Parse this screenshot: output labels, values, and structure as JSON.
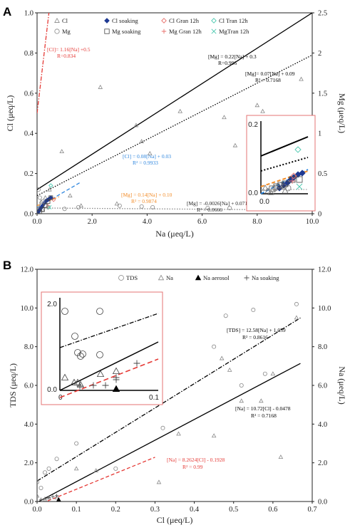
{
  "chart_data": [
    {
      "type": "scatter",
      "panel": "A",
      "xlabel": "Na (μeq/L)",
      "ylabel": "Cl (μeq/L)",
      "y2label": "Mg (μeq/L)",
      "xlim": [
        0,
        10
      ],
      "ylim": [
        0,
        1.0
      ],
      "y2lim": [
        0,
        2.5
      ],
      "xticks": [
        "0.0",
        "2.0",
        "4.0",
        "6.0",
        "8.0",
        "10.0"
      ],
      "yticks": [
        "0.0",
        "0.2",
        "0.4",
        "0.6",
        "0.8",
        "1.0"
      ],
      "y2ticks": [
        "0",
        "0.5",
        "1",
        "1.5",
        "2",
        "2.5"
      ],
      "legend": [
        "Cl",
        "Cl soaking",
        "Cl Gran 12h",
        "Cl Tran 12h",
        "Mg",
        "Mg soaking",
        "Mg Gran 12h",
        "MgTran 12h"
      ],
      "series": [
        {
          "name": "Cl",
          "marker": "triangle-open",
          "color": "#888888",
          "x": [
            0.05,
            0.08,
            0.1,
            0.12,
            0.15,
            0.2,
            0.3,
            0.45,
            0.9,
            1.2,
            1.6,
            2.3,
            2.9,
            3.6,
            3.8,
            4.1,
            5.2,
            6.8,
            7.2,
            8.0,
            8.2,
            9.6
          ],
          "y": [
            0.01,
            0.02,
            0.03,
            0.04,
            0.06,
            0.02,
            0.08,
            0.12,
            0.31,
            0.09,
            0.04,
            0.63,
            0.05,
            0.44,
            0.36,
            0.3,
            0.51,
            0.48,
            0.34,
            0.54,
            0.51,
            0.67
          ]
        },
        {
          "name": "Cl soaking",
          "marker": "diamond-filled",
          "color": "#1f3a93",
          "x": [
            0.05,
            0.1,
            0.15,
            0.2,
            0.25,
            0.3,
            0.35,
            0.4,
            0.45,
            0.5
          ],
          "y": [
            0.01,
            0.02,
            0.03,
            0.04,
            0.05,
            0.06,
            0.065,
            0.07,
            0.075,
            0.08
          ]
        },
        {
          "name": "Cl Gran 12h",
          "marker": "diamond-open",
          "color": "#e8716c",
          "x": [
            0.6
          ],
          "y": [
            0.07
          ]
        },
        {
          "name": "Cl Tran 12h",
          "marker": "diamond-open",
          "color": "#4ec9b0",
          "x": [
            0.5
          ],
          "y": [
            0.14
          ]
        },
        {
          "name": "Mg",
          "marker": "circle-open",
          "color": "#888888",
          "x": [
            0.05,
            0.1,
            0.2,
            0.3,
            0.4,
            1.0,
            1.5,
            3.0,
            3.8,
            4.2,
            6.2,
            7.0,
            8.2,
            9.7
          ],
          "y2": [
            0.3,
            0.2,
            0.15,
            0.1,
            0.08,
            0.06,
            0.08,
            0.1,
            0.09,
            0.08,
            0.07,
            0.07,
            0.08,
            0.06
          ]
        },
        {
          "name": "Mg soaking",
          "marker": "square-open",
          "color": "#444444",
          "x": [
            0.1,
            0.2,
            0.3,
            0.4,
            0.5
          ],
          "y2": [
            0.02,
            0.05,
            0.1,
            0.15,
            0.2
          ]
        },
        {
          "name": "Mg Gran 12h",
          "marker": "plus",
          "color": "#e8716c",
          "x": [
            0.4
          ],
          "y2": [
            0.1
          ]
        },
        {
          "name": "MgTran 12h",
          "marker": "x",
          "color": "#4ec9b0",
          "x": [
            0.45
          ],
          "y2": [
            0.08
          ]
        }
      ],
      "fits": [
        {
          "label": "[Cl]= 1.16[Na] +0.5",
          "r": "R=0.834",
          "color": "#e53935",
          "dash": "dashdot",
          "slope": 1.16,
          "intercept": 0.5,
          "axis": "y",
          "xrange": [
            0,
            0.5
          ]
        },
        {
          "label": "[Mg] = 0.22[Na] + 0.3",
          "r": "R=0.996",
          "color": "#000000",
          "dash": "solid",
          "slope": 0.22,
          "intercept": 0.3,
          "axis": "y2",
          "xrange": [
            0,
            10
          ]
        },
        {
          "label": "[Mg]= 0.07[Na] + 0.09",
          "r": "R² = 0.7168",
          "color": "#000000",
          "dash": "dotted",
          "slope": 0.07,
          "intercept": 0.09,
          "axis": "y",
          "xrange": [
            0,
            10
          ]
        },
        {
          "label": "[Cl] = 0.08[Na] + 0.03",
          "r": "R² = 0.9933",
          "color": "#2e86de",
          "dash": "dashed",
          "slope": 0.08,
          "intercept": 0.03,
          "axis": "y",
          "xrange": [
            0,
            1.6
          ]
        },
        {
          "label": "[Mg] = 0.14[Na] + 0.10",
          "r": "R² = 0.9874",
          "color": "#f28c28",
          "dash": "dashed",
          "slope": 0.14,
          "intercept": 0.1,
          "axis": "y2",
          "xrange": [
            0,
            0.8
          ]
        },
        {
          "label": "[Mg] = -0.0026[Na] + 0.0715",
          "r": "R² = 0.0666",
          "color": "#888888",
          "dash": "dotted",
          "slope": -0.0026,
          "intercept": 0.0715,
          "axis": "y2",
          "xrange": [
            0,
            10
          ]
        }
      ],
      "inset": {
        "yticks": [
          "0.0",
          "0.2"
        ]
      }
    },
    {
      "type": "scatter",
      "panel": "B",
      "xlabel": "Cl (μeq/L)",
      "ylabel": "TDS (μeq/L)",
      "y2label": "Na (μeq/L)",
      "xlim": [
        0,
        0.7
      ],
      "ylim": [
        0,
        12
      ],
      "xticks": [
        "0.0",
        "0.1",
        "0.2",
        "0.3",
        "0.4",
        "0.5",
        "0.6",
        "0.7"
      ],
      "yticks": [
        "0.0",
        "2.0",
        "4.0",
        "6.0",
        "8.0",
        "10.0",
        "12.0"
      ],
      "y2ticks": [
        "0.0",
        "2.0",
        "4.0",
        "6.0",
        "8.0",
        "10.0",
        "12.0"
      ],
      "legend": [
        "TDS",
        "Na",
        "Na aerosol",
        "Na soaking"
      ],
      "series": [
        {
          "name": "TDS",
          "marker": "circle-open",
          "color": "#888888",
          "x": [
            0.0,
            0.01,
            0.02,
            0.03,
            0.05,
            0.1,
            0.2,
            0.32,
            0.45,
            0.48,
            0.52,
            0.55,
            0.58,
            0.66
          ],
          "y": [
            1.0,
            0.7,
            1.5,
            1.7,
            2.2,
            3.0,
            1.7,
            3.8,
            8.0,
            9.6,
            6.0,
            9.9,
            6.6,
            10.2
          ]
        },
        {
          "name": "Na",
          "marker": "triangle-open",
          "color": "#888888",
          "x": [
            0.0,
            0.02,
            0.03,
            0.05,
            0.1,
            0.15,
            0.31,
            0.36,
            0.45,
            0.47,
            0.49,
            0.52,
            0.57,
            0.6,
            0.62,
            0.66
          ],
          "y": [
            0.3,
            0.1,
            0.2,
            0.2,
            1.7,
            1.6,
            1.0,
            3.5,
            3.4,
            7.4,
            6.8,
            5.2,
            5.2,
            6.6,
            2.3,
            9.5
          ]
        },
        {
          "name": "Na aerosol",
          "marker": "triangle-filled",
          "color": "#000000",
          "x": [
            0.055
          ],
          "y": [
            0.1
          ]
        },
        {
          "name": "Na soaking",
          "marker": "plus",
          "color": "#555555",
          "x": [
            0.01,
            0.02,
            0.03,
            0.04,
            0.05
          ],
          "y": [
            0.1,
            0.15,
            0.2,
            0.25,
            0.3
          ]
        }
      ],
      "fits": [
        {
          "label": "[TDS] = 12.58[Na] + 1.059",
          "r": "R² = 0.8616",
          "color": "#000000",
          "dash": "dashdot",
          "slope": 12.58,
          "intercept": 1.059,
          "xrange": [
            0,
            0.67
          ]
        },
        {
          "label": "[Na] = 10.72[Cl] - 0.0478",
          "r": "R² = 0.7168",
          "color": "#000000",
          "dash": "solid",
          "slope": 10.72,
          "intercept": -0.0478,
          "xrange": [
            0,
            0.67
          ]
        },
        {
          "label": "[Na] = 8.2624[Cl] - 0.1928",
          "r": "R² = 0.99",
          "color": "#e53935",
          "dash": "dashed",
          "slope": 8.2624,
          "intercept": -0.1928,
          "xrange": [
            0,
            0.3
          ]
        }
      ],
      "inset": {
        "yticks": [
          "0.0",
          "2.0"
        ],
        "xticks": [
          "0",
          "0.1"
        ]
      }
    }
  ]
}
